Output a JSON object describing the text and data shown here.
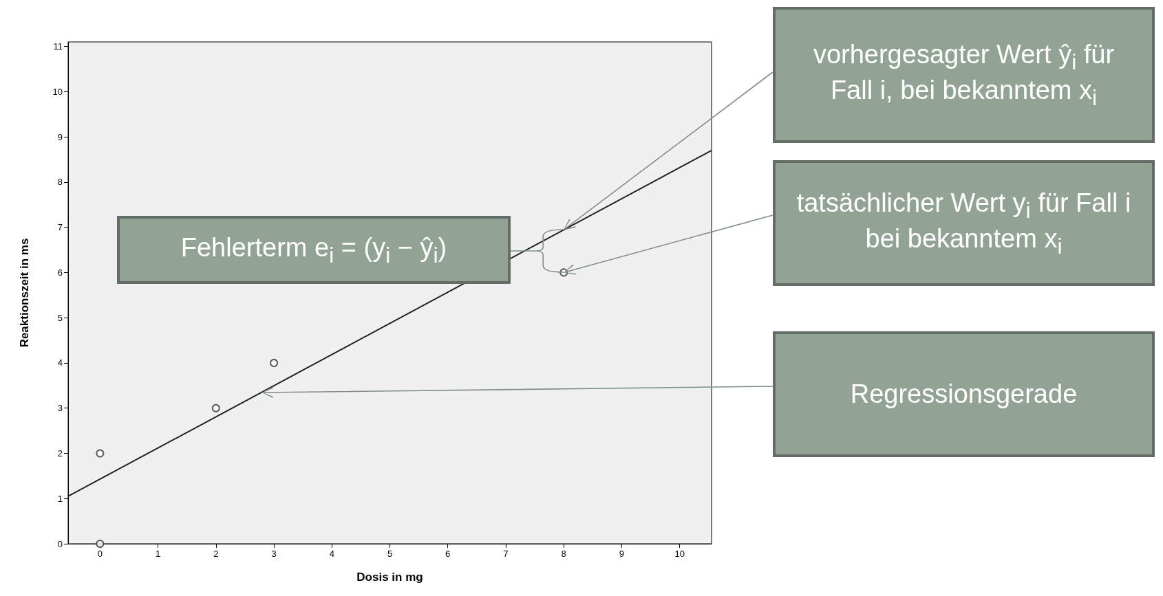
{
  "chart_data": {
    "type": "scatter",
    "xlabel": "Dosis in mg",
    "ylabel": "Reaktionszeit in ms",
    "xlim": [
      -0.55,
      10.55
    ],
    "ylim": [
      0,
      11.1
    ],
    "xticks": [
      0,
      1,
      2,
      3,
      4,
      5,
      6,
      7,
      8,
      9,
      10
    ],
    "yticks": [
      0,
      1,
      2,
      3,
      4,
      5,
      6,
      7,
      8,
      9,
      10,
      11
    ],
    "grid": false,
    "series": [
      {
        "color": "#333333",
        "marker": "circle",
        "x": [
          0,
          0,
          2,
          3,
          8
        ],
        "values": [
          0,
          2,
          3,
          4,
          6
        ]
      },
      {
        "type": "line",
        "color": "#222222",
        "x": [
          -0.55,
          10.55
        ],
        "values": [
          1.05,
          8.7
        ]
      }
    ],
    "annotations": [
      "vorhergesagter Wert ŷ$_{i}$ für Fall i, bei bekanntem x$_{i}$",
      "tatsächlicher Wert y$_{i}$ für Fall i bei bekanntem x$_{i}$",
      "Regressionsgerade",
      "Fehlerterm e$_{i}$ = (y$_{i}$ − ŷ$_{i}$)"
    ]
  }
}
